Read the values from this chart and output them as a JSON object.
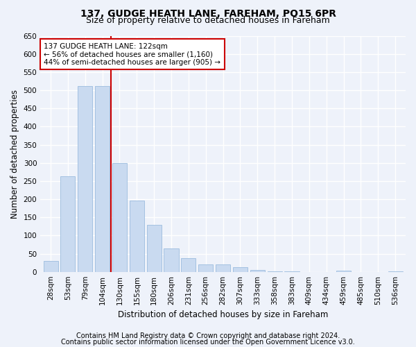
{
  "title": "137, GUDGE HEATH LANE, FAREHAM, PO15 6PR",
  "subtitle": "Size of property relative to detached houses in Fareham",
  "xlabel": "Distribution of detached houses by size in Fareham",
  "ylabel": "Number of detached properties",
  "bar_labels": [
    "28sqm",
    "53sqm",
    "79sqm",
    "104sqm",
    "130sqm",
    "155sqm",
    "180sqm",
    "206sqm",
    "231sqm",
    "256sqm",
    "282sqm",
    "307sqm",
    "333sqm",
    "358sqm",
    "383sqm",
    "409sqm",
    "434sqm",
    "459sqm",
    "485sqm",
    "510sqm",
    "536sqm"
  ],
  "bar_values": [
    30,
    263,
    512,
    512,
    300,
    197,
    130,
    65,
    38,
    20,
    20,
    13,
    6,
    2,
    2,
    0,
    0,
    3,
    0,
    0,
    2
  ],
  "bar_color": "#c9daf0",
  "bar_edge_color": "#9bbcde",
  "vline_color": "#cc0000",
  "vline_x_index": 3.5,
  "annotation_text": "137 GUDGE HEATH LANE: 122sqm\n← 56% of detached houses are smaller (1,160)\n44% of semi-detached houses are larger (905) →",
  "annotation_box_facecolor": "#ffffff",
  "annotation_box_edgecolor": "#cc0000",
  "ylim": [
    0,
    650
  ],
  "yticks": [
    0,
    50,
    100,
    150,
    200,
    250,
    300,
    350,
    400,
    450,
    500,
    550,
    600,
    650
  ],
  "footer_line1": "Contains HM Land Registry data © Crown copyright and database right 2024.",
  "footer_line2": "Contains public sector information licensed under the Open Government Licence v3.0.",
  "bg_color": "#eef2fa",
  "plot_bg_color": "#eef2fa",
  "title_fontsize": 10,
  "subtitle_fontsize": 9,
  "axis_label_fontsize": 8.5,
  "tick_fontsize": 7.5,
  "annotation_fontsize": 7.5,
  "footer_fontsize": 7
}
